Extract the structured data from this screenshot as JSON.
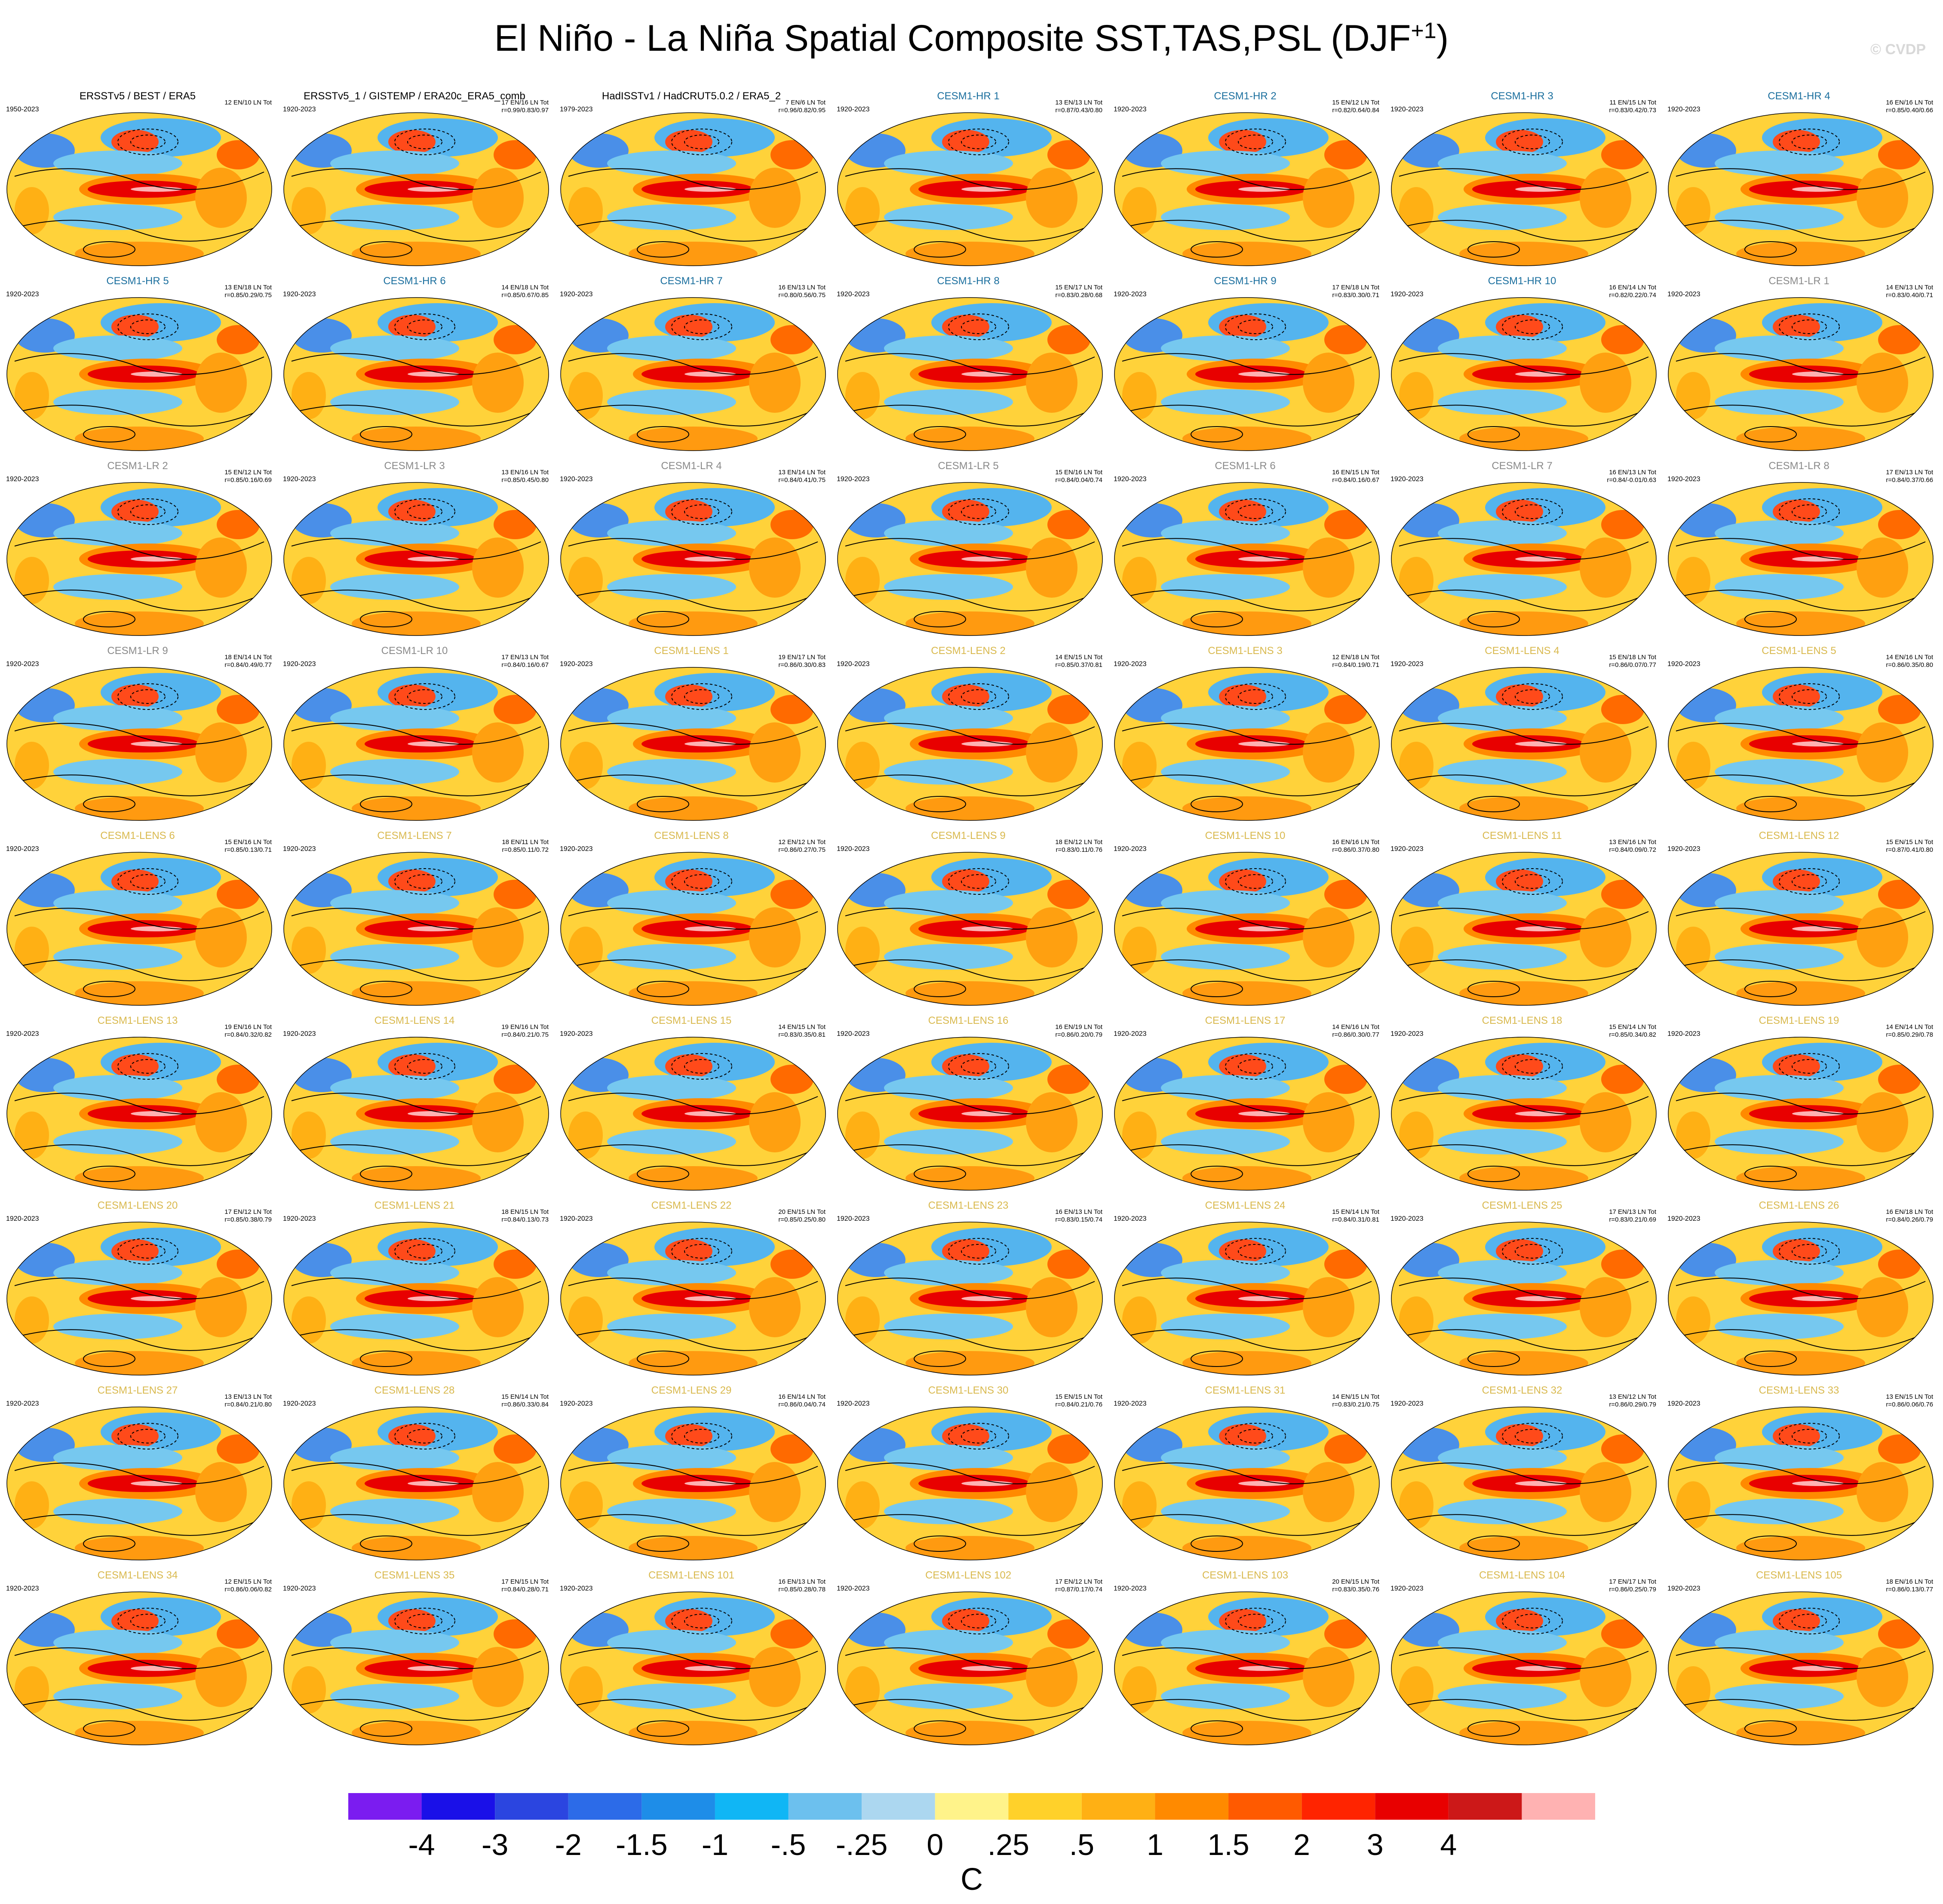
{
  "title": "El Niño - La Niña Spatial Composite SST,TAS,PSL (DJF",
  "title_superscript": "+1",
  "title_close": ")",
  "watermark": "© CVDP",
  "colors": {
    "obs_title": "#000000",
    "hr_title": "#1b6f9e",
    "lr_title": "#8a8a8a",
    "lens_title": "#d9b94e"
  },
  "colorbar": {
    "colors": [
      "#7b1cf0",
      "#1a10e8",
      "#2b45e0",
      "#2c6be8",
      "#1e8de8",
      "#10b6f5",
      "#6cc0ee",
      "#acd7f0",
      "#fff38a",
      "#ffd12a",
      "#ffb014",
      "#ff8a00",
      "#ff5a00",
      "#ff2400",
      "#e80000",
      "#cc1818",
      "#ffb2b2"
    ],
    "ticks": [
      "-4",
      "-3",
      "-2",
      "-1.5",
      "-1",
      "-.5",
      "-.25",
      "0",
      ".25",
      ".5",
      "1",
      "1.5",
      "2",
      "3",
      "4"
    ],
    "units": "C"
  },
  "panels": [
    {
      "title": "ERSSTv5 / BEST / ERA5",
      "group": "obs",
      "period": "1950-2023",
      "count": "12 EN/10 LN Tot",
      "stats": ""
    },
    {
      "title": "ERSSTv5_1 / GISTEMP / ERA20c_ERA5_comb",
      "group": "obs",
      "period": "1920-2023",
      "count": "17 EN/16 LN Tot",
      "stats": "r=0.99/0.83/0.97"
    },
    {
      "title": "HadISSTv1 / HadCRUT5.0.2 / ERA5_2",
      "group": "obs",
      "period": "1979-2023",
      "count": "7 EN/6 LN Tot",
      "stats": "r=0.96/0.82/0.95"
    },
    {
      "title": "CESM1-HR 1",
      "group": "hr",
      "period": "1920-2023",
      "count": "13 EN/13 LN Tot",
      "stats": "r=0.87/0.43/0.80"
    },
    {
      "title": "CESM1-HR 2",
      "group": "hr",
      "period": "1920-2023",
      "count": "15 EN/12 LN Tot",
      "stats": "r=0.82/0.64/0.84"
    },
    {
      "title": "CESM1-HR 3",
      "group": "hr",
      "period": "1920-2023",
      "count": "11 EN/15 LN Tot",
      "stats": "r=0.83/0.42/0.73"
    },
    {
      "title": "CESM1-HR 4",
      "group": "hr",
      "period": "1920-2023",
      "count": "16 EN/16 LN Tot",
      "stats": "r=0.85/0.40/0.66"
    },
    {
      "title": "CESM1-HR 5",
      "group": "hr",
      "period": "1920-2023",
      "count": "13 EN/18 LN Tot",
      "stats": "r=0.85/0.29/0.75"
    },
    {
      "title": "CESM1-HR 6",
      "group": "hr",
      "period": "1920-2023",
      "count": "14 EN/18 LN Tot",
      "stats": "r=0.85/0.67/0.85"
    },
    {
      "title": "CESM1-HR 7",
      "group": "hr",
      "period": "1920-2023",
      "count": "16 EN/13 LN Tot",
      "stats": "r=0.80/0.56/0.75"
    },
    {
      "title": "CESM1-HR 8",
      "group": "hr",
      "period": "1920-2023",
      "count": "15 EN/17 LN Tot",
      "stats": "r=0.83/0.28/0.68"
    },
    {
      "title": "CESM1-HR 9",
      "group": "hr",
      "period": "1920-2023",
      "count": "17 EN/18 LN Tot",
      "stats": "r=0.83/0.30/0.71"
    },
    {
      "title": "CESM1-HR 10",
      "group": "hr",
      "period": "1920-2023",
      "count": "16 EN/14 LN Tot",
      "stats": "r=0.82/0.22/0.74"
    },
    {
      "title": "CESM1-LR 1",
      "group": "lr",
      "period": "1920-2023",
      "count": "14 EN/13 LN Tot",
      "stats": "r=0.83/0.40/0.71"
    },
    {
      "title": "CESM1-LR 2",
      "group": "lr",
      "period": "1920-2023",
      "count": "15 EN/12 LN Tot",
      "stats": "r=0.85/0.16/0.69"
    },
    {
      "title": "CESM1-LR 3",
      "group": "lr",
      "period": "1920-2023",
      "count": "13 EN/16 LN Tot",
      "stats": "r=0.85/0.45/0.80"
    },
    {
      "title": "CESM1-LR 4",
      "group": "lr",
      "period": "1920-2023",
      "count": "13 EN/14 LN Tot",
      "stats": "r=0.84/0.41/0.75"
    },
    {
      "title": "CESM1-LR 5",
      "group": "lr",
      "period": "1920-2023",
      "count": "15 EN/16 LN Tot",
      "stats": "r=0.84/0.04/0.74"
    },
    {
      "title": "CESM1-LR 6",
      "group": "lr",
      "period": "1920-2023",
      "count": "16 EN/15 LN Tot",
      "stats": "r=0.84/0.16/0.67"
    },
    {
      "title": "CESM1-LR 7",
      "group": "lr",
      "period": "1920-2023",
      "count": "16 EN/13 LN Tot",
      "stats": "r=0.84/-0.01/0.63"
    },
    {
      "title": "CESM1-LR 8",
      "group": "lr",
      "period": "1920-2023",
      "count": "17 EN/13 LN Tot",
      "stats": "r=0.84/0.37/0.66"
    },
    {
      "title": "CESM1-LR 9",
      "group": "lr",
      "period": "1920-2023",
      "count": "18 EN/14 LN Tot",
      "stats": "r=0.84/0.49/0.77"
    },
    {
      "title": "CESM1-LR 10",
      "group": "lr",
      "period": "1920-2023",
      "count": "17 EN/13 LN Tot",
      "stats": "r=0.84/0.16/0.67"
    },
    {
      "title": "CESM1-LENS 1",
      "group": "lens",
      "period": "1920-2023",
      "count": "19 EN/17 LN Tot",
      "stats": "r=0.86/0.30/0.83"
    },
    {
      "title": "CESM1-LENS 2",
      "group": "lens",
      "period": "1920-2023",
      "count": "14 EN/15 LN Tot",
      "stats": "r=0.85/0.37/0.81"
    },
    {
      "title": "CESM1-LENS 3",
      "group": "lens",
      "period": "1920-2023",
      "count": "12 EN/18 LN Tot",
      "stats": "r=0.84/0.19/0.71"
    },
    {
      "title": "CESM1-LENS 4",
      "group": "lens",
      "period": "1920-2023",
      "count": "15 EN/18 LN Tot",
      "stats": "r=0.86/0.07/0.77"
    },
    {
      "title": "CESM1-LENS 5",
      "group": "lens",
      "period": "1920-2023",
      "count": "14 EN/16 LN Tot",
      "stats": "r=0.86/0.35/0.80"
    },
    {
      "title": "CESM1-LENS 6",
      "group": "lens",
      "period": "1920-2023",
      "count": "15 EN/16 LN Tot",
      "stats": "r=0.85/0.13/0.71"
    },
    {
      "title": "CESM1-LENS 7",
      "group": "lens",
      "period": "1920-2023",
      "count": "18 EN/11 LN Tot",
      "stats": "r=0.85/0.11/0.72"
    },
    {
      "title": "CESM1-LENS 8",
      "group": "lens",
      "period": "1920-2023",
      "count": "12 EN/12 LN Tot",
      "stats": "r=0.86/0.27/0.75"
    },
    {
      "title": "CESM1-LENS 9",
      "group": "lens",
      "period": "1920-2023",
      "count": "18 EN/12 LN Tot",
      "stats": "r=0.83/0.11/0.76"
    },
    {
      "title": "CESM1-LENS 10",
      "group": "lens",
      "period": "1920-2023",
      "count": "16 EN/16 LN Tot",
      "stats": "r=0.86/0.37/0.80"
    },
    {
      "title": "CESM1-LENS 11",
      "group": "lens",
      "period": "1920-2023",
      "count": "13 EN/16 LN Tot",
      "stats": "r=0.84/0.09/0.72"
    },
    {
      "title": "CESM1-LENS 12",
      "group": "lens",
      "period": "1920-2023",
      "count": "15 EN/15 LN Tot",
      "stats": "r=0.87/0.41/0.80"
    },
    {
      "title": "CESM1-LENS 13",
      "group": "lens",
      "period": "1920-2023",
      "count": "19 EN/16 LN Tot",
      "stats": "r=0.84/0.32/0.82"
    },
    {
      "title": "CESM1-LENS 14",
      "group": "lens",
      "period": "1920-2023",
      "count": "19 EN/16 LN Tot",
      "stats": "r=0.84/0.21/0.75"
    },
    {
      "title": "CESM1-LENS 15",
      "group": "lens",
      "period": "1920-2023",
      "count": "14 EN/15 LN Tot",
      "stats": "r=0.83/0.35/0.81"
    },
    {
      "title": "CESM1-LENS 16",
      "group": "lens",
      "period": "1920-2023",
      "count": "16 EN/19 LN Tot",
      "stats": "r=0.86/0.20/0.79"
    },
    {
      "title": "CESM1-LENS 17",
      "group": "lens",
      "period": "1920-2023",
      "count": "14 EN/16 LN Tot",
      "stats": "r=0.86/0.30/0.77"
    },
    {
      "title": "CESM1-LENS 18",
      "group": "lens",
      "period": "1920-2023",
      "count": "15 EN/14 LN Tot",
      "stats": "r=0.85/0.34/0.82"
    },
    {
      "title": "CESM1-LENS 19",
      "group": "lens",
      "period": "1920-2023",
      "count": "14 EN/14 LN Tot",
      "stats": "r=0.85/0.29/0.78"
    },
    {
      "title": "CESM1-LENS 20",
      "group": "lens",
      "period": "1920-2023",
      "count": "17 EN/12 LN Tot",
      "stats": "r=0.85/0.38/0.79"
    },
    {
      "title": "CESM1-LENS 21",
      "group": "lens",
      "period": "1920-2023",
      "count": "18 EN/15 LN Tot",
      "stats": "r=0.84/0.13/0.73"
    },
    {
      "title": "CESM1-LENS 22",
      "group": "lens",
      "period": "1920-2023",
      "count": "20 EN/15 LN Tot",
      "stats": "r=0.85/0.25/0.80"
    },
    {
      "title": "CESM1-LENS 23",
      "group": "lens",
      "period": "1920-2023",
      "count": "16 EN/13 LN Tot",
      "stats": "r=0.83/0.15/0.74"
    },
    {
      "title": "CESM1-LENS 24",
      "group": "lens",
      "period": "1920-2023",
      "count": "15 EN/14 LN Tot",
      "stats": "r=0.84/0.31/0.81"
    },
    {
      "title": "CESM1-LENS 25",
      "group": "lens",
      "period": "1920-2023",
      "count": "17 EN/13 LN Tot",
      "stats": "r=0.83/0.21/0.69"
    },
    {
      "title": "CESM1-LENS 26",
      "group": "lens",
      "period": "1920-2023",
      "count": "16 EN/18 LN Tot",
      "stats": "r=0.84/0.26/0.79"
    },
    {
      "title": "CESM1-LENS 27",
      "group": "lens",
      "period": "1920-2023",
      "count": "13 EN/13 LN Tot",
      "stats": "r=0.84/0.21/0.80"
    },
    {
      "title": "CESM1-LENS 28",
      "group": "lens",
      "period": "1920-2023",
      "count": "15 EN/14 LN Tot",
      "stats": "r=0.86/0.33/0.84"
    },
    {
      "title": "CESM1-LENS 29",
      "group": "lens",
      "period": "1920-2023",
      "count": "16 EN/14 LN Tot",
      "stats": "r=0.86/0.04/0.74"
    },
    {
      "title": "CESM1-LENS 30",
      "group": "lens",
      "period": "1920-2023",
      "count": "15 EN/15 LN Tot",
      "stats": "r=0.84/0.21/0.76"
    },
    {
      "title": "CESM1-LENS 31",
      "group": "lens",
      "period": "1920-2023",
      "count": "14 EN/15 LN Tot",
      "stats": "r=0.83/0.21/0.75"
    },
    {
      "title": "CESM1-LENS 32",
      "group": "lens",
      "period": "1920-2023",
      "count": "13 EN/12 LN Tot",
      "stats": "r=0.86/0.29/0.79"
    },
    {
      "title": "CESM1-LENS 33",
      "group": "lens",
      "period": "1920-2023",
      "count": "13 EN/15 LN Tot",
      "stats": "r=0.86/0.06/0.76"
    },
    {
      "title": "CESM1-LENS 34",
      "group": "lens",
      "period": "1920-2023",
      "count": "12 EN/15 LN Tot",
      "stats": "r=0.86/0.06/0.82"
    },
    {
      "title": "CESM1-LENS 35",
      "group": "lens",
      "period": "1920-2023",
      "count": "17 EN/15 LN Tot",
      "stats": "r=0.84/0.28/0.71"
    },
    {
      "title": "CESM1-LENS 101",
      "group": "lens",
      "period": "1920-2023",
      "count": "16 EN/13 LN Tot",
      "stats": "r=0.85/0.28/0.78"
    },
    {
      "title": "CESM1-LENS 102",
      "group": "lens",
      "period": "1920-2023",
      "count": "17 EN/12 LN Tot",
      "stats": "r=0.87/0.17/0.74"
    },
    {
      "title": "CESM1-LENS 103",
      "group": "lens",
      "period": "1920-2023",
      "count": "20 EN/15 LN Tot",
      "stats": "r=0.83/0.35/0.76"
    },
    {
      "title": "CESM1-LENS 104",
      "group": "lens",
      "period": "1920-2023",
      "count": "17 EN/17 LN Tot",
      "stats": "r=0.86/0.25/0.79"
    },
    {
      "title": "CESM1-LENS 105",
      "group": "lens",
      "period": "1920-2023",
      "count": "18 EN/16 LN Tot",
      "stats": "r=0.86/0.13/0.77"
    }
  ]
}
